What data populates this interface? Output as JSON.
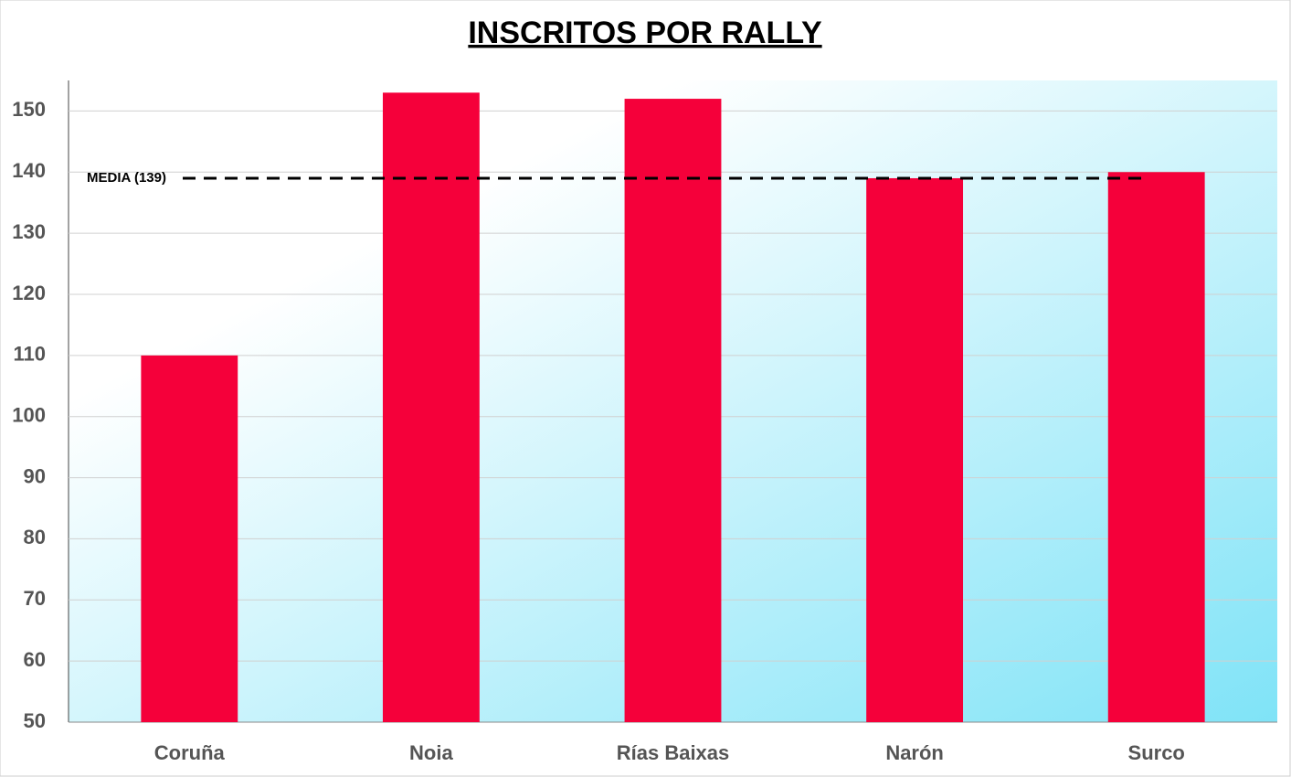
{
  "chart_data": {
    "type": "bar",
    "title": "INSCRITOS POR RALLY",
    "categories": [
      "Coruña",
      "Noia",
      "Rías Baixas",
      "Narón",
      "Surco"
    ],
    "values": [
      110,
      153,
      152,
      139,
      140
    ],
    "color": "#f5003a",
    "ylim": [
      50,
      155
    ],
    "yticks": [
      50,
      60,
      70,
      80,
      90,
      100,
      110,
      120,
      130,
      140,
      150
    ],
    "grid": true,
    "reference_line": {
      "value": 139,
      "label": "MEDIA (139)"
    }
  }
}
